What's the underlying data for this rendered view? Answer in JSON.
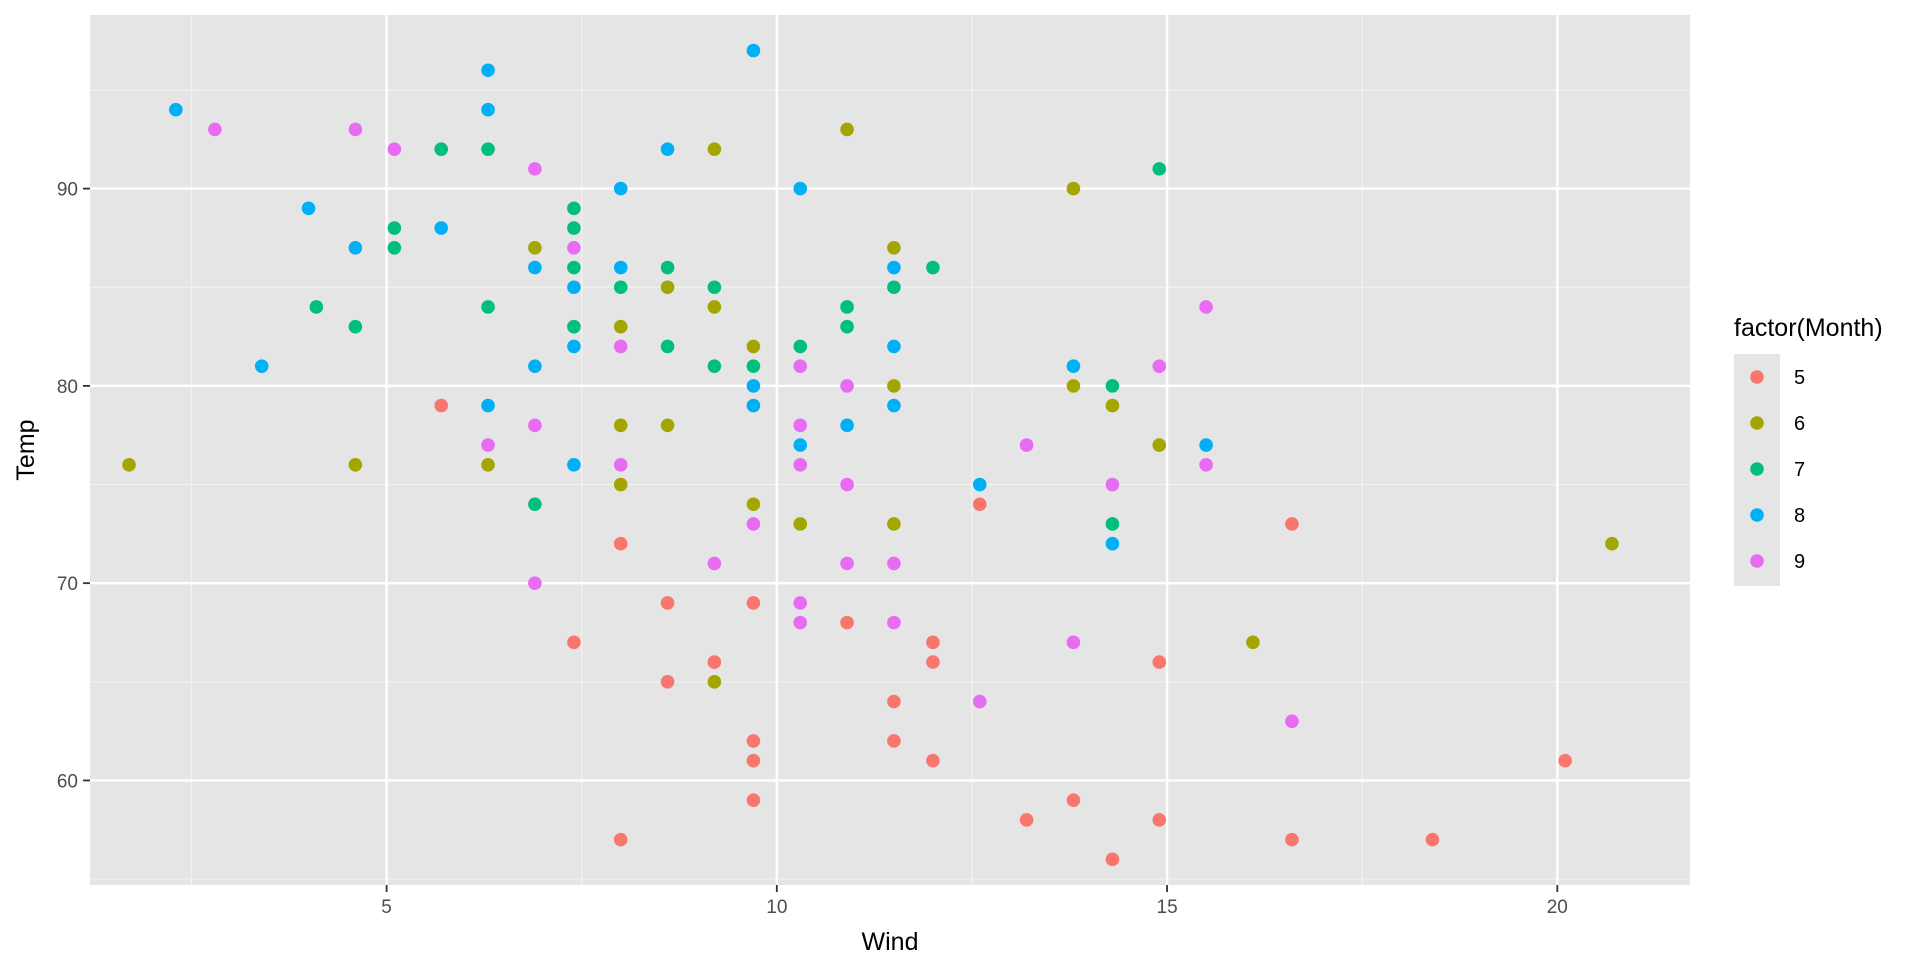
{
  "chart_data": {
    "type": "scatter",
    "xlabel": "Wind",
    "ylabel": "Temp",
    "xlim": [
      1.2,
      21.7
    ],
    "ylim": [
      54.7,
      98.8
    ],
    "x_ticks": [
      5,
      10,
      15,
      20
    ],
    "x_tick_labels": [
      "5",
      "10",
      "15",
      "20"
    ],
    "y_ticks": [
      60,
      70,
      80,
      90
    ],
    "y_tick_labels": [
      "60",
      "70",
      "80",
      "90"
    ],
    "grid": true,
    "panel_background": "#e5e5e5",
    "legend": {
      "title": "factor(Month)",
      "position": "right"
    },
    "series": [
      {
        "name": "5",
        "color": "#f8766d",
        "points": [
          [
            5.7,
            79
          ],
          [
            7.4,
            67
          ],
          [
            8.0,
            72
          ],
          [
            8.0,
            57
          ],
          [
            8.6,
            69
          ],
          [
            8.6,
            65
          ],
          [
            9.2,
            66
          ],
          [
            9.7,
            69
          ],
          [
            9.7,
            62
          ],
          [
            9.7,
            61
          ],
          [
            9.7,
            59
          ],
          [
            10.9,
            68
          ],
          [
            11.5,
            64
          ],
          [
            11.5,
            62
          ],
          [
            12.0,
            67
          ],
          [
            12.0,
            66
          ],
          [
            12.0,
            61
          ],
          [
            12.6,
            74
          ],
          [
            13.2,
            58
          ],
          [
            13.8,
            59
          ],
          [
            14.3,
            56
          ],
          [
            14.9,
            66
          ],
          [
            14.9,
            58
          ],
          [
            16.6,
            73
          ],
          [
            16.6,
            57
          ],
          [
            18.4,
            57
          ],
          [
            20.1,
            61
          ]
        ]
      },
      {
        "name": "6",
        "color": "#a3a500",
        "points": [
          [
            1.7,
            76
          ],
          [
            4.6,
            76
          ],
          [
            6.3,
            76
          ],
          [
            6.9,
            87
          ],
          [
            8.0,
            83
          ],
          [
            8.0,
            78
          ],
          [
            8.0,
            75
          ],
          [
            8.6,
            85
          ],
          [
            8.6,
            78
          ],
          [
            9.2,
            92
          ],
          [
            9.2,
            84
          ],
          [
            9.2,
            65
          ],
          [
            9.7,
            82
          ],
          [
            9.7,
            74
          ],
          [
            10.3,
            73
          ],
          [
            10.9,
            93
          ],
          [
            11.5,
            87
          ],
          [
            11.5,
            80
          ],
          [
            11.5,
            73
          ],
          [
            13.8,
            90
          ],
          [
            13.8,
            80
          ],
          [
            14.3,
            79
          ],
          [
            14.9,
            77
          ],
          [
            16.1,
            67
          ],
          [
            20.7,
            72
          ]
        ]
      },
      {
        "name": "7",
        "color": "#00bf7d",
        "points": [
          [
            4.1,
            84
          ],
          [
            4.6,
            83
          ],
          [
            5.1,
            88
          ],
          [
            5.1,
            87
          ],
          [
            5.7,
            92
          ],
          [
            6.3,
            92
          ],
          [
            6.3,
            84
          ],
          [
            6.9,
            74
          ],
          [
            7.4,
            89
          ],
          [
            7.4,
            88
          ],
          [
            7.4,
            86
          ],
          [
            7.4,
            83
          ],
          [
            8.0,
            85
          ],
          [
            8.6,
            86
          ],
          [
            8.6,
            82
          ],
          [
            9.2,
            85
          ],
          [
            9.2,
            81
          ],
          [
            9.7,
            81
          ],
          [
            10.3,
            82
          ],
          [
            10.9,
            84
          ],
          [
            10.9,
            83
          ],
          [
            11.5,
            85
          ],
          [
            12.0,
            86
          ],
          [
            14.3,
            80
          ],
          [
            14.3,
            73
          ],
          [
            14.9,
            91
          ]
        ]
      },
      {
        "name": "8",
        "color": "#00b0f6",
        "points": [
          [
            2.3,
            94
          ],
          [
            3.4,
            81
          ],
          [
            4.0,
            89
          ],
          [
            4.6,
            87
          ],
          [
            5.7,
            88
          ],
          [
            6.3,
            96
          ],
          [
            6.3,
            94
          ],
          [
            6.3,
            79
          ],
          [
            6.9,
            86
          ],
          [
            6.9,
            81
          ],
          [
            7.4,
            85
          ],
          [
            7.4,
            82
          ],
          [
            7.4,
            76
          ],
          [
            8.0,
            90
          ],
          [
            8.0,
            86
          ],
          [
            8.6,
            92
          ],
          [
            9.7,
            97
          ],
          [
            9.7,
            80
          ],
          [
            9.7,
            79
          ],
          [
            10.3,
            90
          ],
          [
            10.3,
            77
          ],
          [
            10.9,
            78
          ],
          [
            11.5,
            86
          ],
          [
            11.5,
            82
          ],
          [
            11.5,
            79
          ],
          [
            12.6,
            75
          ],
          [
            13.8,
            81
          ],
          [
            14.3,
            72
          ],
          [
            15.5,
            77
          ]
        ]
      },
      {
        "name": "9",
        "color": "#e76bf3",
        "points": [
          [
            2.8,
            93
          ],
          [
            4.6,
            93
          ],
          [
            5.1,
            92
          ],
          [
            6.3,
            77
          ],
          [
            6.9,
            91
          ],
          [
            6.9,
            78
          ],
          [
            6.9,
            70
          ],
          [
            7.4,
            87
          ],
          [
            8.0,
            82
          ],
          [
            8.0,
            76
          ],
          [
            9.2,
            71
          ],
          [
            9.7,
            73
          ],
          [
            10.3,
            81
          ],
          [
            10.3,
            78
          ],
          [
            10.3,
            76
          ],
          [
            10.3,
            69
          ],
          [
            10.3,
            68
          ],
          [
            10.9,
            80
          ],
          [
            10.9,
            75
          ],
          [
            10.9,
            71
          ],
          [
            11.5,
            71
          ],
          [
            11.5,
            68
          ],
          [
            12.6,
            64
          ],
          [
            13.2,
            77
          ],
          [
            13.8,
            67
          ],
          [
            14.3,
            75
          ],
          [
            14.9,
            81
          ],
          [
            15.5,
            84
          ],
          [
            15.5,
            76
          ],
          [
            16.6,
            63
          ]
        ]
      }
    ]
  }
}
